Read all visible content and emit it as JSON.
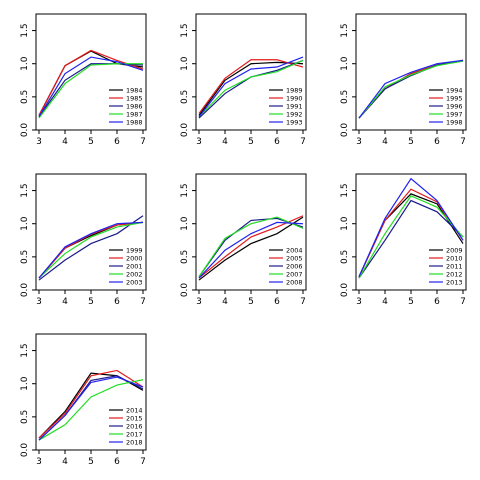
{
  "colors": {
    "black": "#000000",
    "red": "#e41a1c",
    "navy": "#1a1a8c",
    "green": "#22dd22",
    "blue": "#2222ee"
  },
  "chart_data": [
    {
      "type": "line",
      "x": [
        3,
        4,
        5,
        6,
        7
      ],
      "xticks": [
        "3",
        "4",
        "5",
        "6",
        "7"
      ],
      "yticks": [
        "0.0",
        "0.5",
        "1.0",
        "1.5"
      ],
      "xlim": [
        3,
        7
      ],
      "ylim": [
        0,
        1.75
      ],
      "legend": "bottom-right",
      "series": [
        {
          "name": "1984",
          "color": "black",
          "values": [
            0.22,
            0.97,
            1.19,
            1.0,
            0.95
          ]
        },
        {
          "name": "1985",
          "color": "red",
          "values": [
            0.22,
            0.97,
            1.2,
            1.05,
            0.92
          ]
        },
        {
          "name": "1986",
          "color": "navy",
          "values": [
            0.2,
            0.75,
            1.0,
            1.0,
            0.98
          ]
        },
        {
          "name": "1987",
          "color": "green",
          "values": [
            0.18,
            0.7,
            0.98,
            1.0,
            1.0
          ]
        },
        {
          "name": "1988",
          "color": "blue",
          "values": [
            0.2,
            0.85,
            1.1,
            1.03,
            0.9
          ]
        }
      ]
    },
    {
      "type": "line",
      "x": [
        3,
        4,
        5,
        6,
        7
      ],
      "xticks": [
        "3",
        "4",
        "5",
        "6",
        "7"
      ],
      "yticks": [
        "0.0",
        "0.5",
        "1.0",
        "1.5"
      ],
      "xlim": [
        3,
        7
      ],
      "ylim": [
        0,
        1.75
      ],
      "legend": "bottom-right",
      "series": [
        {
          "name": "1989",
          "color": "black",
          "values": [
            0.22,
            0.75,
            1.0,
            1.02,
            1.0
          ]
        },
        {
          "name": "1990",
          "color": "red",
          "values": [
            0.25,
            0.78,
            1.06,
            1.06,
            0.95
          ]
        },
        {
          "name": "1991",
          "color": "navy",
          "values": [
            0.18,
            0.55,
            0.8,
            0.9,
            1.05
          ]
        },
        {
          "name": "1992",
          "color": "green",
          "values": [
            0.2,
            0.6,
            0.8,
            0.88,
            1.05
          ]
        },
        {
          "name": "1993",
          "color": "blue",
          "values": [
            0.2,
            0.7,
            0.92,
            0.95,
            1.1
          ]
        }
      ]
    },
    {
      "type": "line",
      "x": [
        3,
        4,
        5,
        6,
        7
      ],
      "xticks": [
        "3",
        "4",
        "5",
        "6",
        "7"
      ],
      "yticks": [
        "0.0",
        "0.5",
        "1.0",
        "1.5"
      ],
      "xlim": [
        3,
        7
      ],
      "ylim": [
        0,
        1.75
      ],
      "legend": "bottom-right",
      "series": [
        {
          "name": "1994",
          "color": "black",
          "values": [
            0.18,
            0.62,
            0.85,
            0.98,
            1.05
          ]
        },
        {
          "name": "1995",
          "color": "red",
          "values": [
            0.18,
            0.62,
            0.85,
            0.98,
            1.05
          ]
        },
        {
          "name": "1996",
          "color": "navy",
          "values": [
            0.18,
            0.62,
            0.82,
            0.98,
            1.04
          ]
        },
        {
          "name": "1997",
          "color": "green",
          "values": [
            0.18,
            0.65,
            0.83,
            0.97,
            1.04
          ]
        },
        {
          "name": "1998",
          "color": "blue",
          "values": [
            0.18,
            0.7,
            0.87,
            1.0,
            1.05
          ]
        }
      ]
    },
    {
      "type": "line",
      "x": [
        3,
        4,
        5,
        6,
        7
      ],
      "xticks": [
        "3",
        "4",
        "5",
        "6",
        "7"
      ],
      "yticks": [
        "0.0",
        "0.5",
        "1.0",
        "1.5"
      ],
      "xlim": [
        3,
        7
      ],
      "ylim": [
        0,
        1.75
      ],
      "legend": "bottom-right",
      "series": [
        {
          "name": "1999",
          "color": "black",
          "values": [
            0.18,
            0.63,
            0.82,
            0.98,
            1.02
          ]
        },
        {
          "name": "2000",
          "color": "red",
          "values": [
            0.18,
            0.63,
            0.84,
            0.98,
            1.02
          ]
        },
        {
          "name": "2001",
          "color": "navy",
          "values": [
            0.15,
            0.45,
            0.7,
            0.85,
            1.12
          ]
        },
        {
          "name": "2002",
          "color": "green",
          "values": [
            0.18,
            0.55,
            0.8,
            0.95,
            1.02
          ]
        },
        {
          "name": "2003",
          "color": "blue",
          "values": [
            0.18,
            0.65,
            0.85,
            1.0,
            1.02
          ]
        }
      ]
    },
    {
      "type": "line",
      "x": [
        3,
        4,
        5,
        6,
        7
      ],
      "xticks": [
        "3",
        "4",
        "5",
        "6",
        "7"
      ],
      "yticks": [
        "0.0",
        "0.5",
        "1.0",
        "1.5"
      ],
      "xlim": [
        3,
        7
      ],
      "ylim": [
        0,
        1.75
      ],
      "legend": "bottom-right",
      "series": [
        {
          "name": "2004",
          "color": "black",
          "values": [
            0.15,
            0.45,
            0.7,
            0.85,
            1.1
          ]
        },
        {
          "name": "2005",
          "color": "red",
          "values": [
            0.18,
            0.5,
            0.8,
            0.95,
            1.12
          ]
        },
        {
          "name": "2006",
          "color": "navy",
          "values": [
            0.2,
            0.75,
            1.05,
            1.08,
            0.95
          ]
        },
        {
          "name": "2007",
          "color": "green",
          "values": [
            0.2,
            0.78,
            1.0,
            1.1,
            0.93
          ]
        },
        {
          "name": "2008",
          "color": "blue",
          "values": [
            0.18,
            0.6,
            0.85,
            1.02,
            1.0
          ]
        }
      ]
    },
    {
      "type": "line",
      "x": [
        3,
        4,
        5,
        6,
        7
      ],
      "xticks": [
        "3",
        "4",
        "5",
        "6",
        "7"
      ],
      "yticks": [
        "0.0",
        "0.5",
        "1.0",
        "1.5"
      ],
      "xlim": [
        3,
        7
      ],
      "ylim": [
        0,
        1.75
      ],
      "legend": "bottom-right",
      "series": [
        {
          "name": "2009",
          "color": "black",
          "values": [
            0.2,
            1.05,
            1.45,
            1.3,
            0.7
          ]
        },
        {
          "name": "2010",
          "color": "red",
          "values": [
            0.2,
            1.05,
            1.52,
            1.33,
            0.75
          ]
        },
        {
          "name": "2011",
          "color": "navy",
          "values": [
            0.18,
            0.75,
            1.35,
            1.18,
            0.8
          ]
        },
        {
          "name": "2012",
          "color": "green",
          "values": [
            0.18,
            0.85,
            1.42,
            1.25,
            0.8
          ]
        },
        {
          "name": "2013",
          "color": "blue",
          "values": [
            0.2,
            1.08,
            1.68,
            1.35,
            0.75
          ]
        }
      ]
    },
    {
      "type": "line",
      "x": [
        3,
        4,
        5,
        6,
        7
      ],
      "xticks": [
        "3",
        "4",
        "5",
        "6",
        "7"
      ],
      "yticks": [
        "0.0",
        "0.5",
        "1.0",
        "1.5"
      ],
      "xlim": [
        3,
        7
      ],
      "ylim": [
        0,
        1.75
      ],
      "legend": "bottom-right",
      "series": [
        {
          "name": "2014",
          "color": "black",
          "values": [
            0.18,
            0.58,
            1.16,
            1.12,
            0.9
          ]
        },
        {
          "name": "2015",
          "color": "red",
          "values": [
            0.18,
            0.55,
            1.12,
            1.2,
            0.95
          ]
        },
        {
          "name": "2016",
          "color": "navy",
          "values": [
            0.15,
            0.52,
            1.05,
            1.12,
            0.92
          ]
        },
        {
          "name": "2017",
          "color": "green",
          "values": [
            0.15,
            0.38,
            0.8,
            0.98,
            1.06
          ]
        },
        {
          "name": "2018",
          "color": "blue",
          "values": [
            0.15,
            0.52,
            1.02,
            1.1,
            0.95
          ]
        }
      ]
    }
  ]
}
